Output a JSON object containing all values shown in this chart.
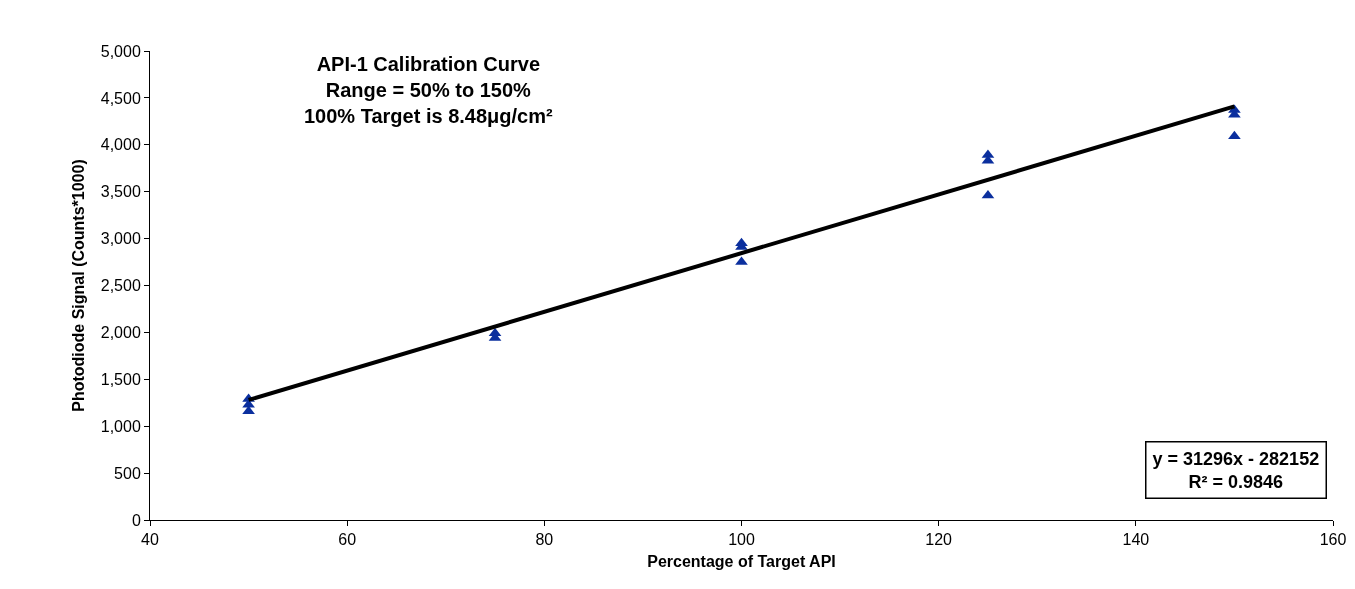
{
  "chart_data": {
    "type": "scatter",
    "title": "API-1 Calibration Curve",
    "subtitle": "Range = 50% to 150%\n100% Target is 8.48μg/cm²",
    "xlabel": "Percentage of Target API",
    "ylabel": "Photodiode Signal (Counts*1000)",
    "series": [
      {
        "color": "#0b2f9e",
        "marker": "triangle",
        "x": [
          50,
          50,
          50,
          75,
          75,
          100,
          100,
          100,
          125,
          125,
          125,
          150,
          150,
          150
        ],
        "values": [
          1290,
          1230,
          1160,
          1990,
          1940,
          2950,
          2910,
          2750,
          3890,
          3830,
          3460,
          4370,
          4320,
          4090
        ]
      },
      {
        "type": "line",
        "color": "#000000",
        "marker": "none",
        "line_style": "solid",
        "x": [
          50,
          150
        ],
        "values": [
          1280,
          4410
        ]
      }
    ],
    "annotations": [
      "y = 31296x - 282152\nR² = 0.9846"
    ],
    "xlim": [
      40,
      160
    ],
    "xticks": [
      40,
      60,
      80,
      100,
      120,
      140,
      160
    ],
    "ylim": [
      0,
      5000
    ],
    "yticks": [
      0,
      500,
      {
        "value": 1000,
        "label": "1,000"
      },
      {
        "value": 1500,
        "label": "1,500"
      },
      {
        "value": 2000,
        "label": "2,000"
      },
      {
        "value": 2500,
        "label": "2,500"
      },
      {
        "value": 3000,
        "label": "3,000"
      },
      {
        "value": 3500,
        "label": "3,500"
      },
      {
        "value": 4000,
        "label": "4,000"
      },
      {
        "value": 4500,
        "label": "4,500"
      },
      {
        "value": 5000,
        "label": "5,000"
      }
    ],
    "grid": false
  }
}
